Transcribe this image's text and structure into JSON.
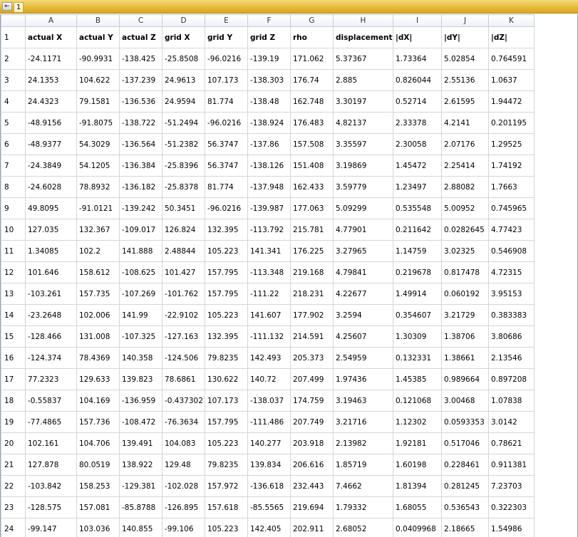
{
  "tabbar": {
    "pin_glyph": "⇤",
    "sheet_tab": "1"
  },
  "columns": [
    "A",
    "B",
    "C",
    "D",
    "E",
    "F",
    "G",
    "H",
    "I",
    "J",
    "K"
  ],
  "rows": [
    {
      "num": "1",
      "cells": [
        "actual X",
        "actual Y",
        "actual Z",
        "grid X",
        "grid Y",
        "grid Z",
        "rho",
        "displacement",
        "|dX|",
        "|dY|",
        "|dZ|"
      ]
    },
    {
      "num": "2",
      "cells": [
        "-24.1171",
        "-90.9931",
        "-138.425",
        "-25.8508",
        "-96.0216",
        "-139.19",
        "171.062",
        "5.37367",
        "1.73364",
        "5.02854",
        "0.764591"
      ]
    },
    {
      "num": "3",
      "cells": [
        "24.1353",
        "104.622",
        "-137.239",
        "24.9613",
        "107.173",
        "-138.303",
        "176.74",
        "2.885",
        "0.826044",
        "2.55136",
        "1.0637"
      ]
    },
    {
      "num": "4",
      "cells": [
        "24.4323",
        "79.1581",
        "-136.536",
        "24.9594",
        "81.774",
        "-138.48",
        "162.748",
        "3.30197",
        "0.52714",
        "2.61595",
        "1.94472"
      ]
    },
    {
      "num": "5",
      "cells": [
        "-48.9156",
        "-91.8075",
        "-138.722",
        "-51.2494",
        "-96.0216",
        "-138.924",
        "176.483",
        "4.82137",
        "2.33378",
        "4.2141",
        "0.201195"
      ]
    },
    {
      "num": "6",
      "cells": [
        "-48.9377",
        "54.3029",
        "-136.564",
        "-51.2382",
        "56.3747",
        "-137.86",
        "157.508",
        "3.35597",
        "2.30058",
        "2.07176",
        "1.29525"
      ]
    },
    {
      "num": "7",
      "cells": [
        "-24.3849",
        "54.1205",
        "-136.384",
        "-25.8396",
        "56.3747",
        "-138.126",
        "151.408",
        "3.19869",
        "1.45472",
        "2.25414",
        "1.74192"
      ]
    },
    {
      "num": "8",
      "cells": [
        "-24.6028",
        "78.8932",
        "-136.182",
        "-25.8378",
        "81.774",
        "-137.948",
        "162.433",
        "3.59779",
        "1.23497",
        "2.88082",
        "1.7663"
      ]
    },
    {
      "num": "9",
      "cells": [
        "49.8095",
        "-91.0121",
        "-139.242",
        "50.3451",
        "-96.0216",
        "-139.987",
        "177.063",
        "5.09299",
        "0.535548",
        "5.00952",
        "0.745965"
      ]
    },
    {
      "num": "10",
      "cells": [
        "127.035",
        "132.367",
        "-109.017",
        "126.824",
        "132.395",
        "-113.792",
        "215.781",
        "4.77901",
        "0.211642",
        "0.0282645",
        "4.77423"
      ]
    },
    {
      "num": "11",
      "cells": [
        "1.34085",
        "102.2",
        "141.888",
        "2.48844",
        "105.223",
        "141.341",
        "176.225",
        "3.27965",
        "1.14759",
        "3.02325",
        "0.546908"
      ]
    },
    {
      "num": "12",
      "cells": [
        "101.646",
        "158.612",
        "-108.625",
        "101.427",
        "157.795",
        "-113.348",
        "219.168",
        "4.79841",
        "0.219678",
        "0.817478",
        "4.72315"
      ]
    },
    {
      "num": "13",
      "cells": [
        "-103.261",
        "157.735",
        "-107.269",
        "-101.762",
        "157.795",
        "-111.22",
        "218.231",
        "4.22677",
        "1.49914",
        "0.060192",
        "3.95153"
      ]
    },
    {
      "num": "14",
      "cells": [
        "-23.2648",
        "102.006",
        "141.99",
        "-22.9102",
        "105.223",
        "141.607",
        "177.902",
        "3.2594",
        "0.354607",
        "3.21729",
        "0.383383"
      ]
    },
    {
      "num": "15",
      "cells": [
        "-128.466",
        "131.008",
        "-107.325",
        "-127.163",
        "132.395",
        "-111.132",
        "214.591",
        "4.25607",
        "1.30309",
        "1.38706",
        "3.80686"
      ]
    },
    {
      "num": "16",
      "cells": [
        "-124.374",
        "78.4369",
        "140.358",
        "-124.506",
        "79.8235",
        "142.493",
        "205.373",
        "2.54959",
        "0.132331",
        "1.38661",
        "2.13546"
      ]
    },
    {
      "num": "17",
      "cells": [
        "77.2323",
        "129.633",
        "139.823",
        "78.6861",
        "130.622",
        "140.72",
        "207.499",
        "1.97436",
        "1.45385",
        "0.989664",
        "0.897208"
      ]
    },
    {
      "num": "18",
      "cells": [
        "-0.55837",
        "104.169",
        "-136.959",
        "-0.437302",
        "107.173",
        "-138.037",
        "174.759",
        "3.19463",
        "0.121068",
        "3.00468",
        "1.07838"
      ]
    },
    {
      "num": "19",
      "cells": [
        "-77.4865",
        "157.736",
        "-108.472",
        "-76.3634",
        "157.795",
        "-111.486",
        "207.749",
        "3.21716",
        "1.12302",
        "0.0593353",
        "3.0142"
      ]
    },
    {
      "num": "20",
      "cells": [
        "102.161",
        "104.706",
        "139.491",
        "104.083",
        "105.223",
        "140.277",
        "203.918",
        "2.13982",
        "1.92181",
        "0.517046",
        "0.78621"
      ]
    },
    {
      "num": "21",
      "cells": [
        "127.878",
        "80.0519",
        "138.922",
        "129.48",
        "79.8235",
        "139.834",
        "206.616",
        "1.85719",
        "1.60198",
        "0.228461",
        "0.911381"
      ]
    },
    {
      "num": "22",
      "cells": [
        "-103.842",
        "158.253",
        "-129.381",
        "-102.028",
        "157.972",
        "-136.618",
        "232.443",
        "7.4662",
        "1.81394",
        "0.281245",
        "7.23703"
      ]
    },
    {
      "num": "23",
      "cells": [
        "-128.575",
        "157.081",
        "-85.8788",
        "-126.895",
        "157.618",
        "-85.5565",
        "219.694",
        "1.79332",
        "1.68055",
        "0.536543",
        "0.322303"
      ]
    },
    {
      "num": "24",
      "cells": [
        "-99.147",
        "103.036",
        "140.855",
        "-99.106",
        "105.223",
        "142.405",
        "202.911",
        "2.68052",
        "0.0409968",
        "2.18665",
        "1.54986"
      ]
    }
  ]
}
